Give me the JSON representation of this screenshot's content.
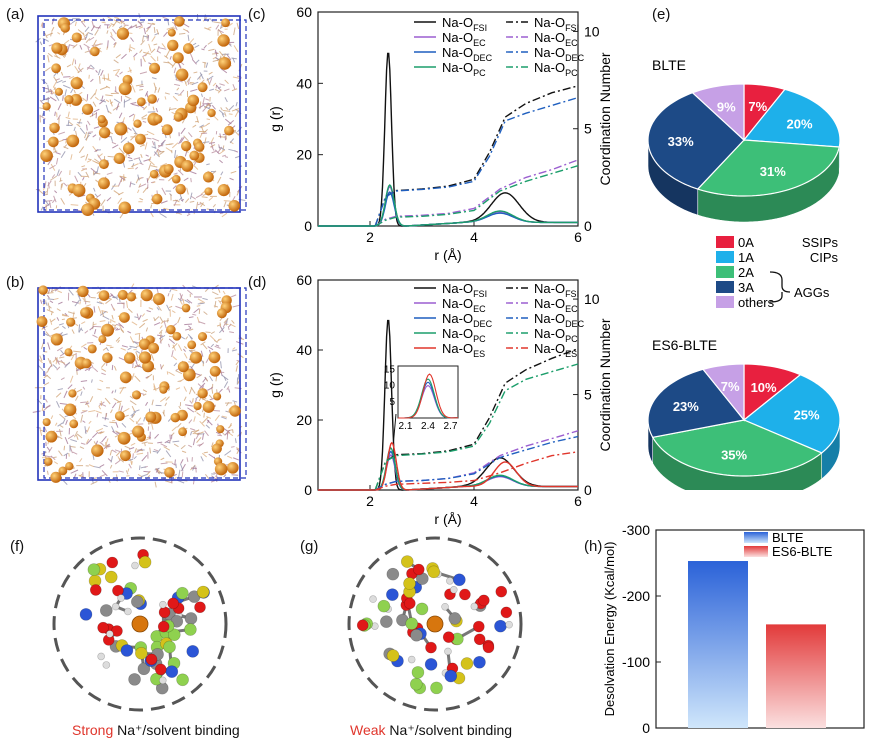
{
  "labels": {
    "a": "(a)",
    "b": "(b)",
    "c": "(c)",
    "d": "(d)",
    "e": "(e)",
    "f": "(f)",
    "g": "(g)",
    "h": "(h)"
  },
  "axis": {
    "xlabel": "r (Å)",
    "ylabel": "g (r)",
    "y2label": "Coordination Number"
  },
  "legend_c": [
    {
      "base": "Na-O",
      "sub": "FSI",
      "color": "#111111",
      "style": "solid"
    },
    {
      "base": "Na-O",
      "sub": "FSI",
      "color": "#111111",
      "style": "dashdot"
    },
    {
      "base": "Na-O",
      "sub": "EC",
      "color": "#9b5fd0",
      "style": "solid"
    },
    {
      "base": "Na-O",
      "sub": "EC",
      "color": "#9b5fd0",
      "style": "dashdot"
    },
    {
      "base": "Na-O",
      "sub": "DEC",
      "color": "#1f5fbf",
      "style": "solid"
    },
    {
      "base": "Na-O",
      "sub": "DEC",
      "color": "#1f5fbf",
      "style": "dashdot"
    },
    {
      "base": "Na-O",
      "sub": "PC",
      "color": "#1c9e6b",
      "style": "solid"
    },
    {
      "base": "Na-O",
      "sub": "PC",
      "color": "#1c9e6b",
      "style": "dashdot"
    }
  ],
  "legend_d": [
    {
      "base": "Na-O",
      "sub": "FSI",
      "color": "#111111",
      "style": "solid"
    },
    {
      "base": "Na-O",
      "sub": "FSI",
      "color": "#111111",
      "style": "dashdot"
    },
    {
      "base": "Na-O",
      "sub": "EC",
      "color": "#9b5fd0",
      "style": "solid"
    },
    {
      "base": "Na-O",
      "sub": "EC",
      "color": "#9b5fd0",
      "style": "dashdot"
    },
    {
      "base": "Na-O",
      "sub": "DEC",
      "color": "#1f5fbf",
      "style": "solid"
    },
    {
      "base": "Na-O",
      "sub": "DEC",
      "color": "#1f5fbf",
      "style": "dashdot"
    },
    {
      "base": "Na-O",
      "sub": "PC",
      "color": "#1c9e6b",
      "style": "solid"
    },
    {
      "base": "Na-O",
      "sub": "PC",
      "color": "#1c9e6b",
      "style": "dashdot"
    },
    {
      "base": "Na-O",
      "sub": "ES",
      "color": "#e0362c",
      "style": "solid"
    },
    {
      "base": "Na-O",
      "sub": "ES",
      "color": "#e0362c",
      "style": "dashdot"
    }
  ],
  "inset": {
    "xticks": [
      "2.1",
      "2.4",
      "2.7"
    ],
    "yticks": [
      "5",
      "10",
      "15"
    ]
  },
  "pie_legend": {
    "items": [
      {
        "label": "0A",
        "color": "#e8203f"
      },
      {
        "label": "1A",
        "color": "#1eb0ea"
      },
      {
        "label": "2A",
        "color": "#3dbf78"
      },
      {
        "label": "3A",
        "color": "#1d4a86"
      },
      {
        "label": "others",
        "color": "#c6a0e6"
      }
    ],
    "ssips": "SSIPs",
    "cips": "CIPs",
    "aggs": "AGGs"
  },
  "captions": {
    "f_strong": "Strong",
    "f_rest": " Na⁺/solvent binding",
    "g_weak": "Weak",
    "g_rest": " Na⁺/solvent binding"
  },
  "chart_data": [
    {
      "id": "c",
      "type": "line",
      "title": "",
      "xlabel": "r (Å)",
      "ylabel": "g (r)",
      "y2label": "Coordination Number",
      "xlim": [
        1,
        6
      ],
      "ylim": [
        0,
        60
      ],
      "y2lim": [
        0,
        11
      ],
      "xticks": [
        2,
        4,
        6
      ],
      "yticks": [
        0,
        20,
        40,
        60
      ],
      "y2ticks": [
        0,
        5,
        10
      ],
      "series": [
        {
          "name": "Na-O FSI",
          "axis": "left",
          "peaks": [
            [
              2.35,
              49,
              0.09
            ],
            [
              4.6,
              8.3,
              0.38
            ]
          ]
        },
        {
          "name": "Na-O EC",
          "axis": "left",
          "peaks": [
            [
              2.38,
              11,
              0.12
            ],
            [
              4.5,
              3,
              0.35
            ]
          ]
        },
        {
          "name": "Na-O DEC",
          "axis": "left",
          "peaks": [
            [
              2.38,
              9.5,
              0.12
            ],
            [
              4.5,
              2.6,
              0.35
            ]
          ]
        },
        {
          "name": "Na-O PC",
          "axis": "left",
          "peaks": [
            [
              2.38,
              11.5,
              0.12
            ],
            [
              4.5,
              3.2,
              0.35
            ]
          ]
        },
        {
          "name": "Na-O FSI (CN)",
          "axis": "right",
          "x": [
            2.1,
            2.3,
            2.5,
            3.0,
            3.5,
            4.0,
            4.3,
            4.6,
            5.0,
            5.5,
            6.0
          ],
          "y": [
            0,
            1.5,
            1.82,
            1.9,
            2.05,
            2.4,
            3.8,
            5.6,
            6.3,
            6.85,
            7.2
          ]
        },
        {
          "name": "Na-O EC (CN)",
          "axis": "right",
          "x": [
            2.1,
            2.3,
            2.5,
            3.0,
            3.5,
            4.0,
            4.5,
            5.0,
            5.5,
            6.0
          ],
          "y": [
            0,
            0.35,
            0.5,
            0.55,
            0.65,
            0.9,
            1.9,
            2.5,
            2.9,
            3.4
          ]
        },
        {
          "name": "Na-O DEC (CN)",
          "axis": "right",
          "x": [
            2.1,
            2.3,
            2.5,
            3.0,
            3.5,
            4.0,
            4.3,
            4.6,
            5.0,
            5.5,
            6.0
          ],
          "y": [
            0,
            1.5,
            1.8,
            1.88,
            2.0,
            2.3,
            3.6,
            5.4,
            5.8,
            6.2,
            6.6
          ]
        },
        {
          "name": "Na-O PC (CN)",
          "axis": "right",
          "x": [
            2.1,
            2.3,
            2.5,
            3.0,
            3.5,
            4.0,
            4.5,
            5.0,
            5.5,
            6.0
          ],
          "y": [
            0,
            0.3,
            0.45,
            0.5,
            0.6,
            0.8,
            1.8,
            2.3,
            2.7,
            3.1
          ]
        }
      ]
    },
    {
      "id": "d",
      "type": "line",
      "title": "",
      "xlabel": "r (Å)",
      "ylabel": "g (r)",
      "y2label": "Coordination Number",
      "xlim": [
        1,
        6
      ],
      "ylim": [
        0,
        60
      ],
      "y2lim": [
        0,
        11
      ],
      "xticks": [
        2,
        4,
        6
      ],
      "yticks": [
        0,
        20,
        40,
        60
      ],
      "y2ticks": [
        0,
        5,
        10
      ],
      "series": [
        {
          "name": "Na-O FSI",
          "axis": "left",
          "peaks": [
            [
              2.35,
              49,
              0.09
            ],
            [
              4.5,
              8.2,
              0.38
            ]
          ]
        },
        {
          "name": "Na-O EC",
          "axis": "left",
          "peaks": [
            [
              2.4,
              10,
              0.12
            ],
            [
              4.5,
              2.8,
              0.35
            ]
          ]
        },
        {
          "name": "Na-O DEC",
          "axis": "left",
          "peaks": [
            [
              2.4,
              11,
              0.12
            ],
            [
              4.5,
              3.0,
              0.35
            ]
          ]
        },
        {
          "name": "Na-O PC",
          "axis": "left",
          "peaks": [
            [
              2.4,
              12,
              0.12
            ],
            [
              4.5,
              3.2,
              0.35
            ]
          ]
        },
        {
          "name": "Na-O ES",
          "axis": "left",
          "peaks": [
            [
              2.42,
              13.5,
              0.12
            ],
            [
              4.6,
              7.0,
              0.3
            ]
          ]
        },
        {
          "name": "Na-O FSI (CN)",
          "axis": "right",
          "x": [
            2.1,
            2.3,
            2.5,
            3.0,
            3.5,
            4.0,
            4.3,
            4.6,
            5.0,
            5.5,
            6.0
          ],
          "y": [
            0,
            1.5,
            1.85,
            1.9,
            2.05,
            2.4,
            3.8,
            5.6,
            6.3,
            6.9,
            7.4
          ]
        },
        {
          "name": "Na-O EC (CN)",
          "axis": "right",
          "x": [
            2.1,
            2.3,
            2.5,
            3.0,
            3.5,
            4.0,
            4.5,
            5.0,
            5.5,
            6.0
          ],
          "y": [
            0,
            0.3,
            0.45,
            0.5,
            0.6,
            0.9,
            1.8,
            2.3,
            2.7,
            3.1
          ]
        },
        {
          "name": "Na-O DEC (CN)",
          "axis": "right",
          "x": [
            2.1,
            2.3,
            2.5,
            3.0,
            3.5,
            4.0,
            4.5,
            5.0,
            5.5,
            6.0
          ],
          "y": [
            0,
            0.3,
            0.45,
            0.5,
            0.6,
            0.85,
            1.7,
            2.1,
            2.5,
            2.8
          ]
        },
        {
          "name": "Na-O PC (CN)",
          "axis": "right",
          "x": [
            2.1,
            2.3,
            2.5,
            3.0,
            3.5,
            4.0,
            4.3,
            4.6,
            5.0,
            5.5,
            6.0
          ],
          "y": [
            0,
            1.5,
            1.8,
            1.88,
            2.0,
            2.3,
            3.5,
            5.2,
            5.8,
            6.2,
            6.6
          ]
        },
        {
          "name": "Na-O ES (CN)",
          "axis": "right",
          "x": [
            2.1,
            2.3,
            2.5,
            3.0,
            3.5,
            4.0,
            4.5,
            5.0,
            5.5,
            6.0
          ],
          "y": [
            0,
            0.2,
            0.3,
            0.35,
            0.4,
            0.5,
            0.9,
            1.4,
            1.8,
            2.0
          ]
        }
      ]
    },
    {
      "id": "e_blte",
      "type": "pie",
      "title": "BLTE",
      "categories": [
        "0A",
        "1A",
        "2A",
        "3A",
        "others"
      ],
      "values": [
        7,
        20,
        31,
        33,
        9
      ],
      "data_labels": [
        "7%",
        "20%",
        "31%",
        "33%",
        "9%"
      ]
    },
    {
      "id": "e_es6",
      "type": "pie",
      "title": "ES6-BLTE",
      "categories": [
        "0A",
        "1A",
        "2A",
        "3A",
        "others"
      ],
      "values": [
        10,
        25,
        35,
        23,
        7
      ],
      "data_labels": [
        "10%",
        "25%",
        "35%",
        "23%",
        "7%"
      ]
    },
    {
      "id": "h",
      "type": "bar",
      "title": "",
      "categories": [
        "BLTE",
        "ES6-BLTE"
      ],
      "values": [
        -253,
        -157
      ],
      "ylabel": "Desolvation  Energy (Kcal/mol)",
      "ylim": [
        0,
        -300
      ],
      "yticks": [
        0,
        -100,
        -200,
        -300
      ],
      "ytick_labels": [
        "0",
        "-100",
        "-200",
        "-300"
      ],
      "legend": [
        "BLTE",
        "ES6-BLTE"
      ]
    }
  ]
}
